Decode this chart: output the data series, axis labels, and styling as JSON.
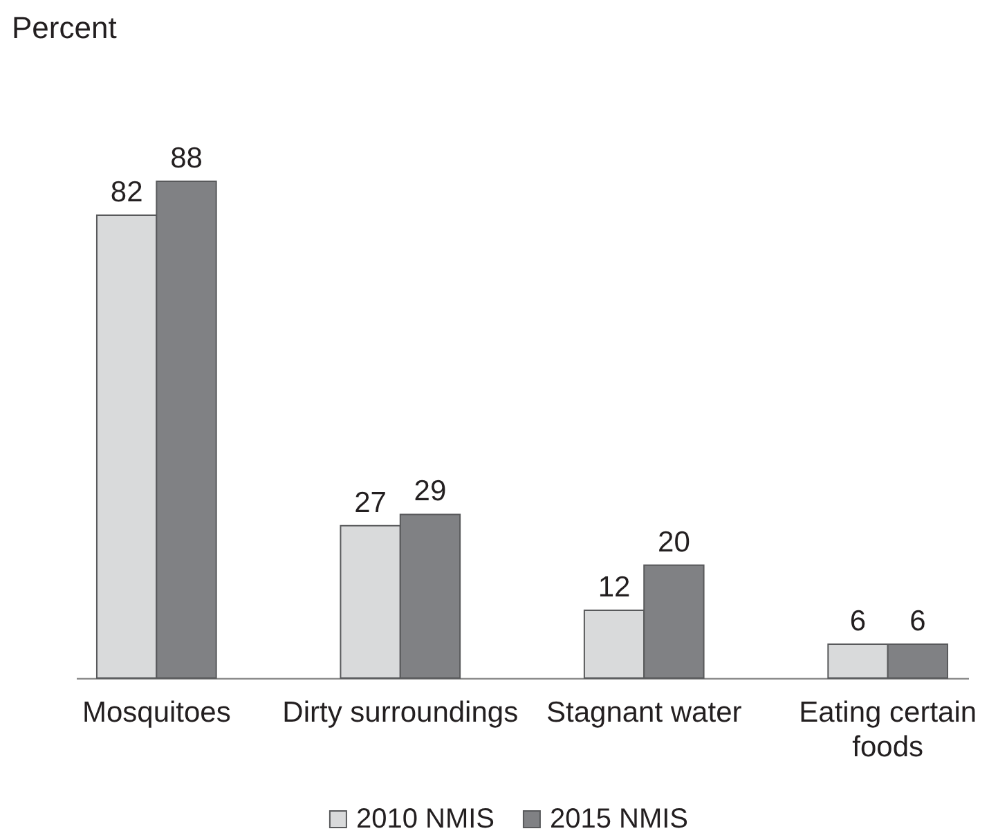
{
  "chart_data": {
    "type": "bar",
    "ylabel": "Percent",
    "categories": [
      "Mosquitoes",
      "Dirty surroundings",
      "Stagnant water",
      "Eating certain foods"
    ],
    "series": [
      {
        "name": "2010 NMIS",
        "color": "#d9dadb",
        "values": [
          82,
          27,
          12,
          6
        ]
      },
      {
        "name": "2015 NMIS",
        "color": "#808184",
        "values": [
          88,
          29,
          20,
          6
        ]
      }
    ],
    "data_labels": true,
    "legend": "bottom"
  }
}
